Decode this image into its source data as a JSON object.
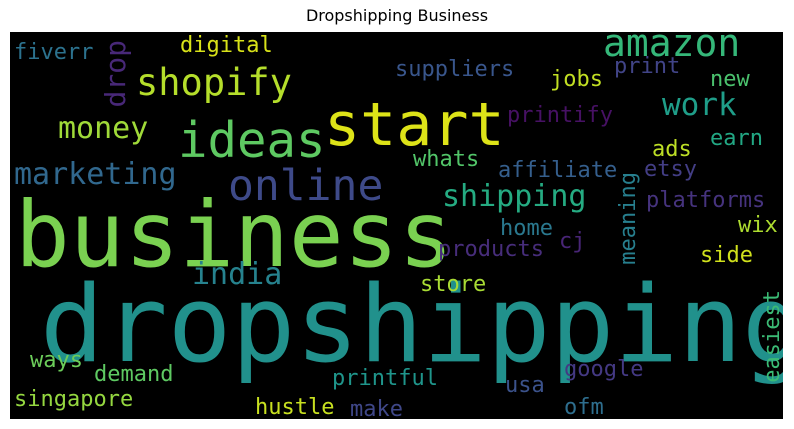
{
  "title": "Dropshipping Business",
  "words": {
    "dropshipping": {
      "text": "dropshipping",
      "color": "#21918c"
    },
    "business": {
      "text": "business",
      "color": "#7ad151"
    },
    "start": {
      "text": "start",
      "color": "#dde318"
    },
    "ideas": {
      "text": "ideas",
      "color": "#5ec962"
    },
    "online": {
      "text": "online",
      "color": "#3e4a89"
    },
    "amazon": {
      "text": "amazon",
      "color": "#35b779"
    },
    "shopify": {
      "text": "shopify",
      "color": "#b5de2b"
    },
    "drop": {
      "text": "drop",
      "color": "#482878"
    },
    "work": {
      "text": "work",
      "color": "#1f9e89"
    },
    "money": {
      "text": "money",
      "color": "#a0da39"
    },
    "marketing": {
      "text": "marketing",
      "color": "#31688e"
    },
    "shipping": {
      "text": "shipping",
      "color": "#25ab82"
    },
    "india": {
      "text": "india",
      "color": "#26828e"
    },
    "digital": {
      "text": "digital",
      "color": "#d8e219"
    },
    "fiverr": {
      "text": "fiverr",
      "color": "#2c728e"
    },
    "suppliers": {
      "text": "suppliers",
      "color": "#39568c"
    },
    "jobs": {
      "text": "jobs",
      "color": "#c2df23"
    },
    "print": {
      "text": "print",
      "color": "#414487"
    },
    "new": {
      "text": "new",
      "color": "#4ac16d"
    },
    "printify": {
      "text": "printify",
      "color": "#471164"
    },
    "earn": {
      "text": "earn",
      "color": "#22a884"
    },
    "ads": {
      "text": "ads",
      "color": "#bddf26"
    },
    "whats": {
      "text": "whats",
      "color": "#52c569"
    },
    "affiliate": {
      "text": "affiliate",
      "color": "#355f8d"
    },
    "etsy": {
      "text": "etsy",
      "color": "#433e85"
    },
    "meaning": {
      "text": "meaning",
      "color": "#277f8e"
    },
    "platforms": {
      "text": "platforms",
      "color": "#46337e"
    },
    "home": {
      "text": "home",
      "color": "#2a788e"
    },
    "cj": {
      "text": "cj",
      "color": "#482576"
    },
    "wix": {
      "text": "wix",
      "color": "#addc30"
    },
    "products": {
      "text": "products",
      "color": "#472d7b"
    },
    "side": {
      "text": "side",
      "color": "#d0e11c"
    },
    "store": {
      "text": "store",
      "color": "#a8db34"
    },
    "easiest": {
      "text": "easiest",
      "color": "#3bbb75"
    },
    "ways": {
      "text": "ways",
      "color": "#6ccd5a"
    },
    "demand": {
      "text": "demand",
      "color": "#5ec962"
    },
    "printful": {
      "text": "printful",
      "color": "#1f958b"
    },
    "google": {
      "text": "google",
      "color": "#443983"
    },
    "singapore": {
      "text": "singapore",
      "color": "#95d840"
    },
    "usa": {
      "text": "usa",
      "color": "#3b528b"
    },
    "hustle": {
      "text": "hustle",
      "color": "#c8e020"
    },
    "make": {
      "text": "make",
      "color": "#3f4788"
    },
    "ofm": {
      "text": "ofm",
      "color": "#2e6e8e"
    }
  }
}
